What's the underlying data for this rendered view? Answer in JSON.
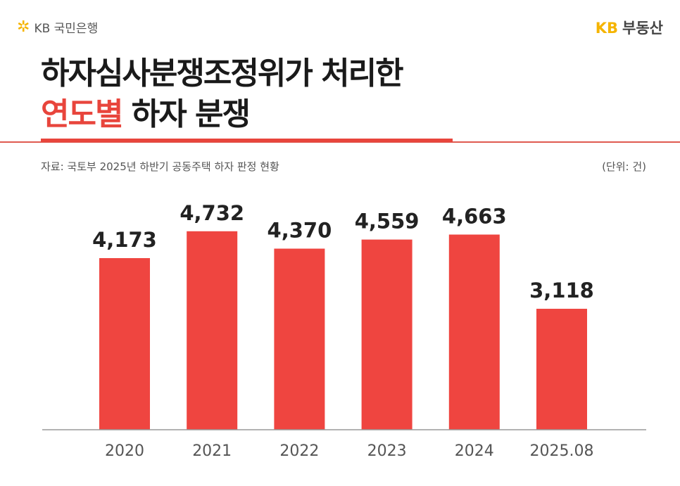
{
  "header": {
    "left_logo": "KB 국민은행",
    "right_logo_kb": "KB",
    "right_logo_text": "부동산"
  },
  "title": {
    "line1": "하자심사분쟁조정위가 처리한",
    "line2_highlight": "연도별",
    "line2_rest": "하자 분쟁"
  },
  "source": "자료: 국토부 2025년 하반기 공동주택 하자 판정 현황",
  "unit": "(단위: 건)",
  "colors": {
    "bar": "#ef4540",
    "highlight": "#e8453c",
    "logo_yellow": "#f5b400"
  },
  "chart_data": {
    "type": "bar",
    "categories": [
      "2020",
      "2021",
      "2022",
      "2023",
      "2024",
      "2025.08"
    ],
    "values": [
      4173,
      4732,
      4370,
      4559,
      4663,
      3118
    ],
    "value_labels": [
      "4,173",
      "4,732",
      "4,370",
      "4,559",
      "4,663",
      "3,118"
    ],
    "title": "하자심사분쟁조정위가 처리한 연도별 하자 분쟁",
    "xlabel": "",
    "ylabel": "",
    "ylim": [
      600,
      5300
    ],
    "grid": false
  }
}
